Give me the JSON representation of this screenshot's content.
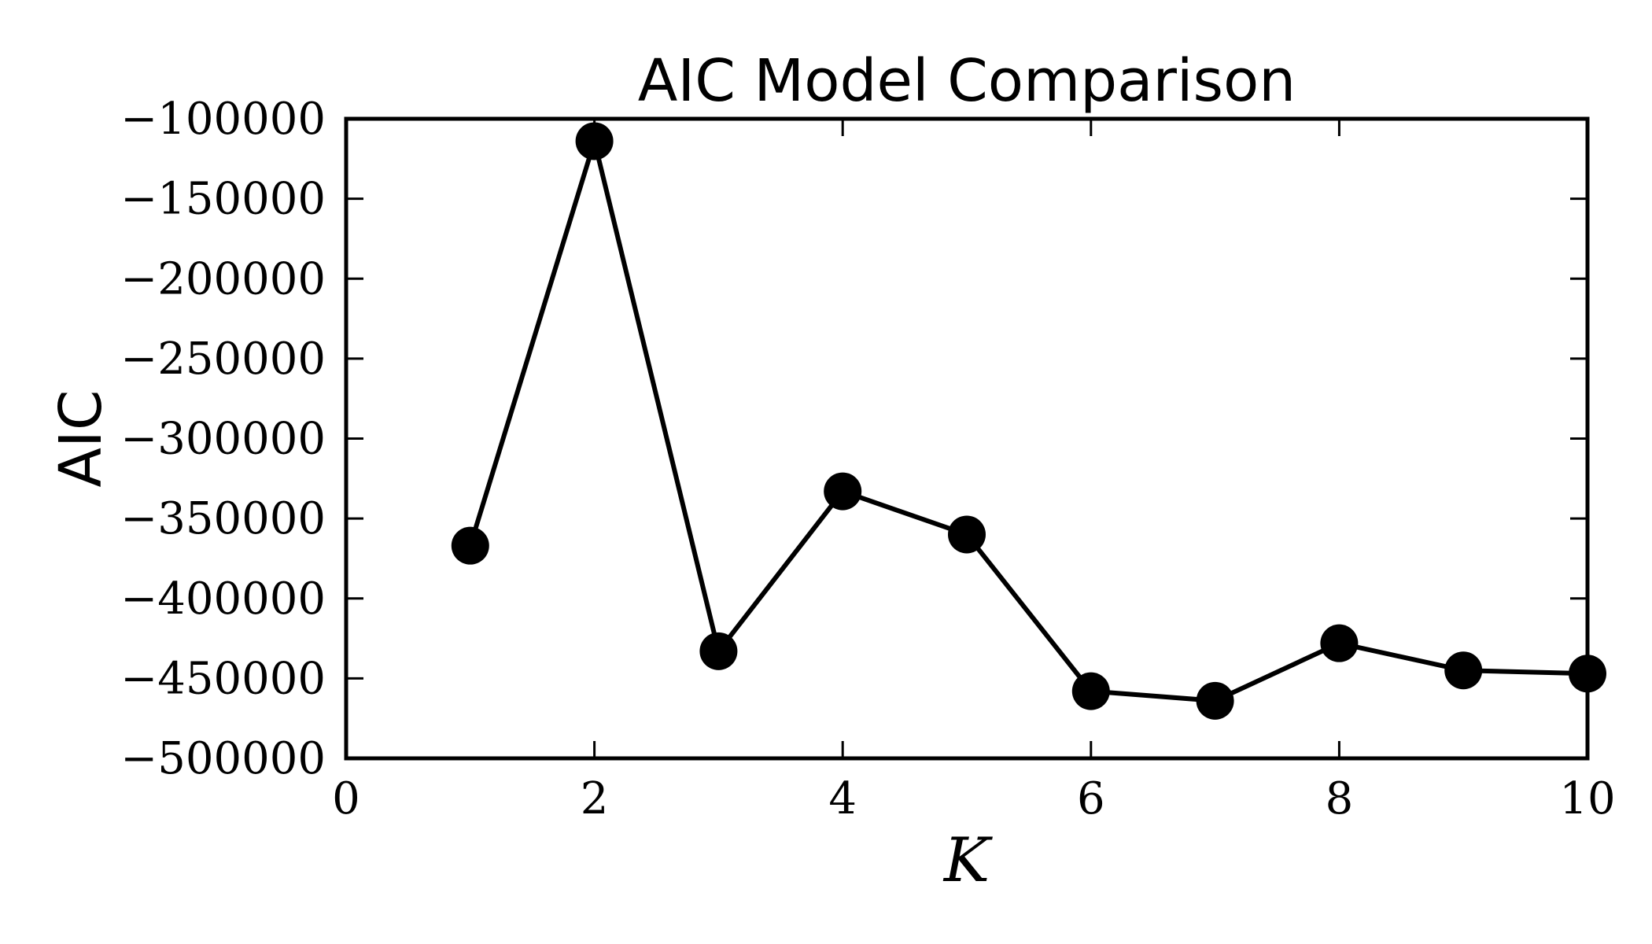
{
  "chart_data": {
    "type": "line",
    "title": "AIC Model Comparison",
    "xlabel": "K",
    "ylabel": "AIC",
    "x": [
      1,
      2,
      3,
      4,
      5,
      6,
      7,
      8,
      9,
      10
    ],
    "series": [
      {
        "values": [
          -367000,
          -114000,
          -433000,
          -333000,
          -360000,
          -458000,
          -464000,
          -428000,
          -445000,
          -447000
        ]
      }
    ],
    "xlim": [
      0,
      10
    ],
    "ylim": [
      -500000,
      -100000
    ],
    "xticks": [
      0,
      2,
      4,
      6,
      8,
      10
    ],
    "xtick_labels": [
      "0",
      "2",
      "4",
      "6",
      "8",
      "10"
    ],
    "yticks": [
      -100000,
      -150000,
      -200000,
      -250000,
      -300000,
      -350000,
      -400000,
      -450000,
      -500000
    ],
    "ytick_labels": [
      "−100000",
      "−150000",
      "−200000",
      "−250000",
      "−300000",
      "−350000",
      "−400000",
      "−450000",
      "−500000"
    ],
    "grid": false,
    "marker": "circle",
    "line_color": "#000000"
  }
}
